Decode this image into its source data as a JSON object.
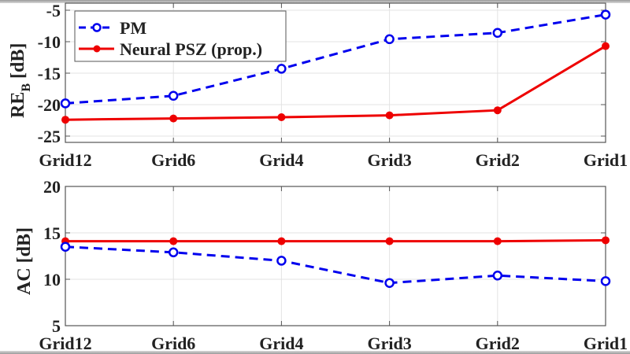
{
  "chart_data": [
    {
      "type": "line",
      "title": "",
      "xlabel": "",
      "ylabel": "RE_B [dB]",
      "ylabel_main": "RE",
      "ylabel_sub": "B",
      "ylabel_unit": "[dB]",
      "categories": [
        "Grid12",
        "Grid6",
        "Grid4",
        "Grid3",
        "Grid2",
        "Grid1"
      ],
      "ylim": [
        -26,
        -4
      ],
      "yticks": [
        -5,
        -10,
        -15,
        -20,
        -25
      ],
      "grid": true,
      "legend_position": "upper left",
      "series": [
        {
          "name": "PM",
          "style": "dashed, open circle markers",
          "color": "#0000ee",
          "values": [
            -19.8,
            -18.6,
            -14.3,
            -9.6,
            -8.6,
            -5.7
          ]
        },
        {
          "name": "Neural PSZ (prop.)",
          "style": "solid, filled circle markers",
          "color": "#ee0000",
          "values": [
            -22.4,
            -22.2,
            -22.0,
            -21.7,
            -20.9,
            -10.7
          ]
        }
      ]
    },
    {
      "type": "line",
      "title": "",
      "xlabel": "",
      "ylabel": "AC [dB]",
      "categories": [
        "Grid12",
        "Grid6",
        "Grid4",
        "Grid3",
        "Grid2",
        "Grid1"
      ],
      "ylim": [
        5,
        20
      ],
      "yticks": [
        20,
        15,
        10,
        5
      ],
      "grid": true,
      "series": [
        {
          "name": "PM",
          "style": "dashed, open circle markers",
          "color": "#0000ee",
          "values": [
            13.5,
            12.9,
            12.0,
            9.6,
            10.4,
            9.8
          ]
        },
        {
          "name": "Neural PSZ (prop.)",
          "style": "solid, filled circle markers",
          "color": "#ee0000",
          "values": [
            14.1,
            14.1,
            14.1,
            14.1,
            14.1,
            14.2
          ]
        }
      ]
    }
  ],
  "legend": {
    "pm_label": "PM",
    "neural_label": "Neural PSZ (prop.)"
  },
  "colors": {
    "pm": "#0000ee",
    "neural": "#ee0000",
    "grid": "#e3e3e3",
    "axis": "#555555"
  }
}
